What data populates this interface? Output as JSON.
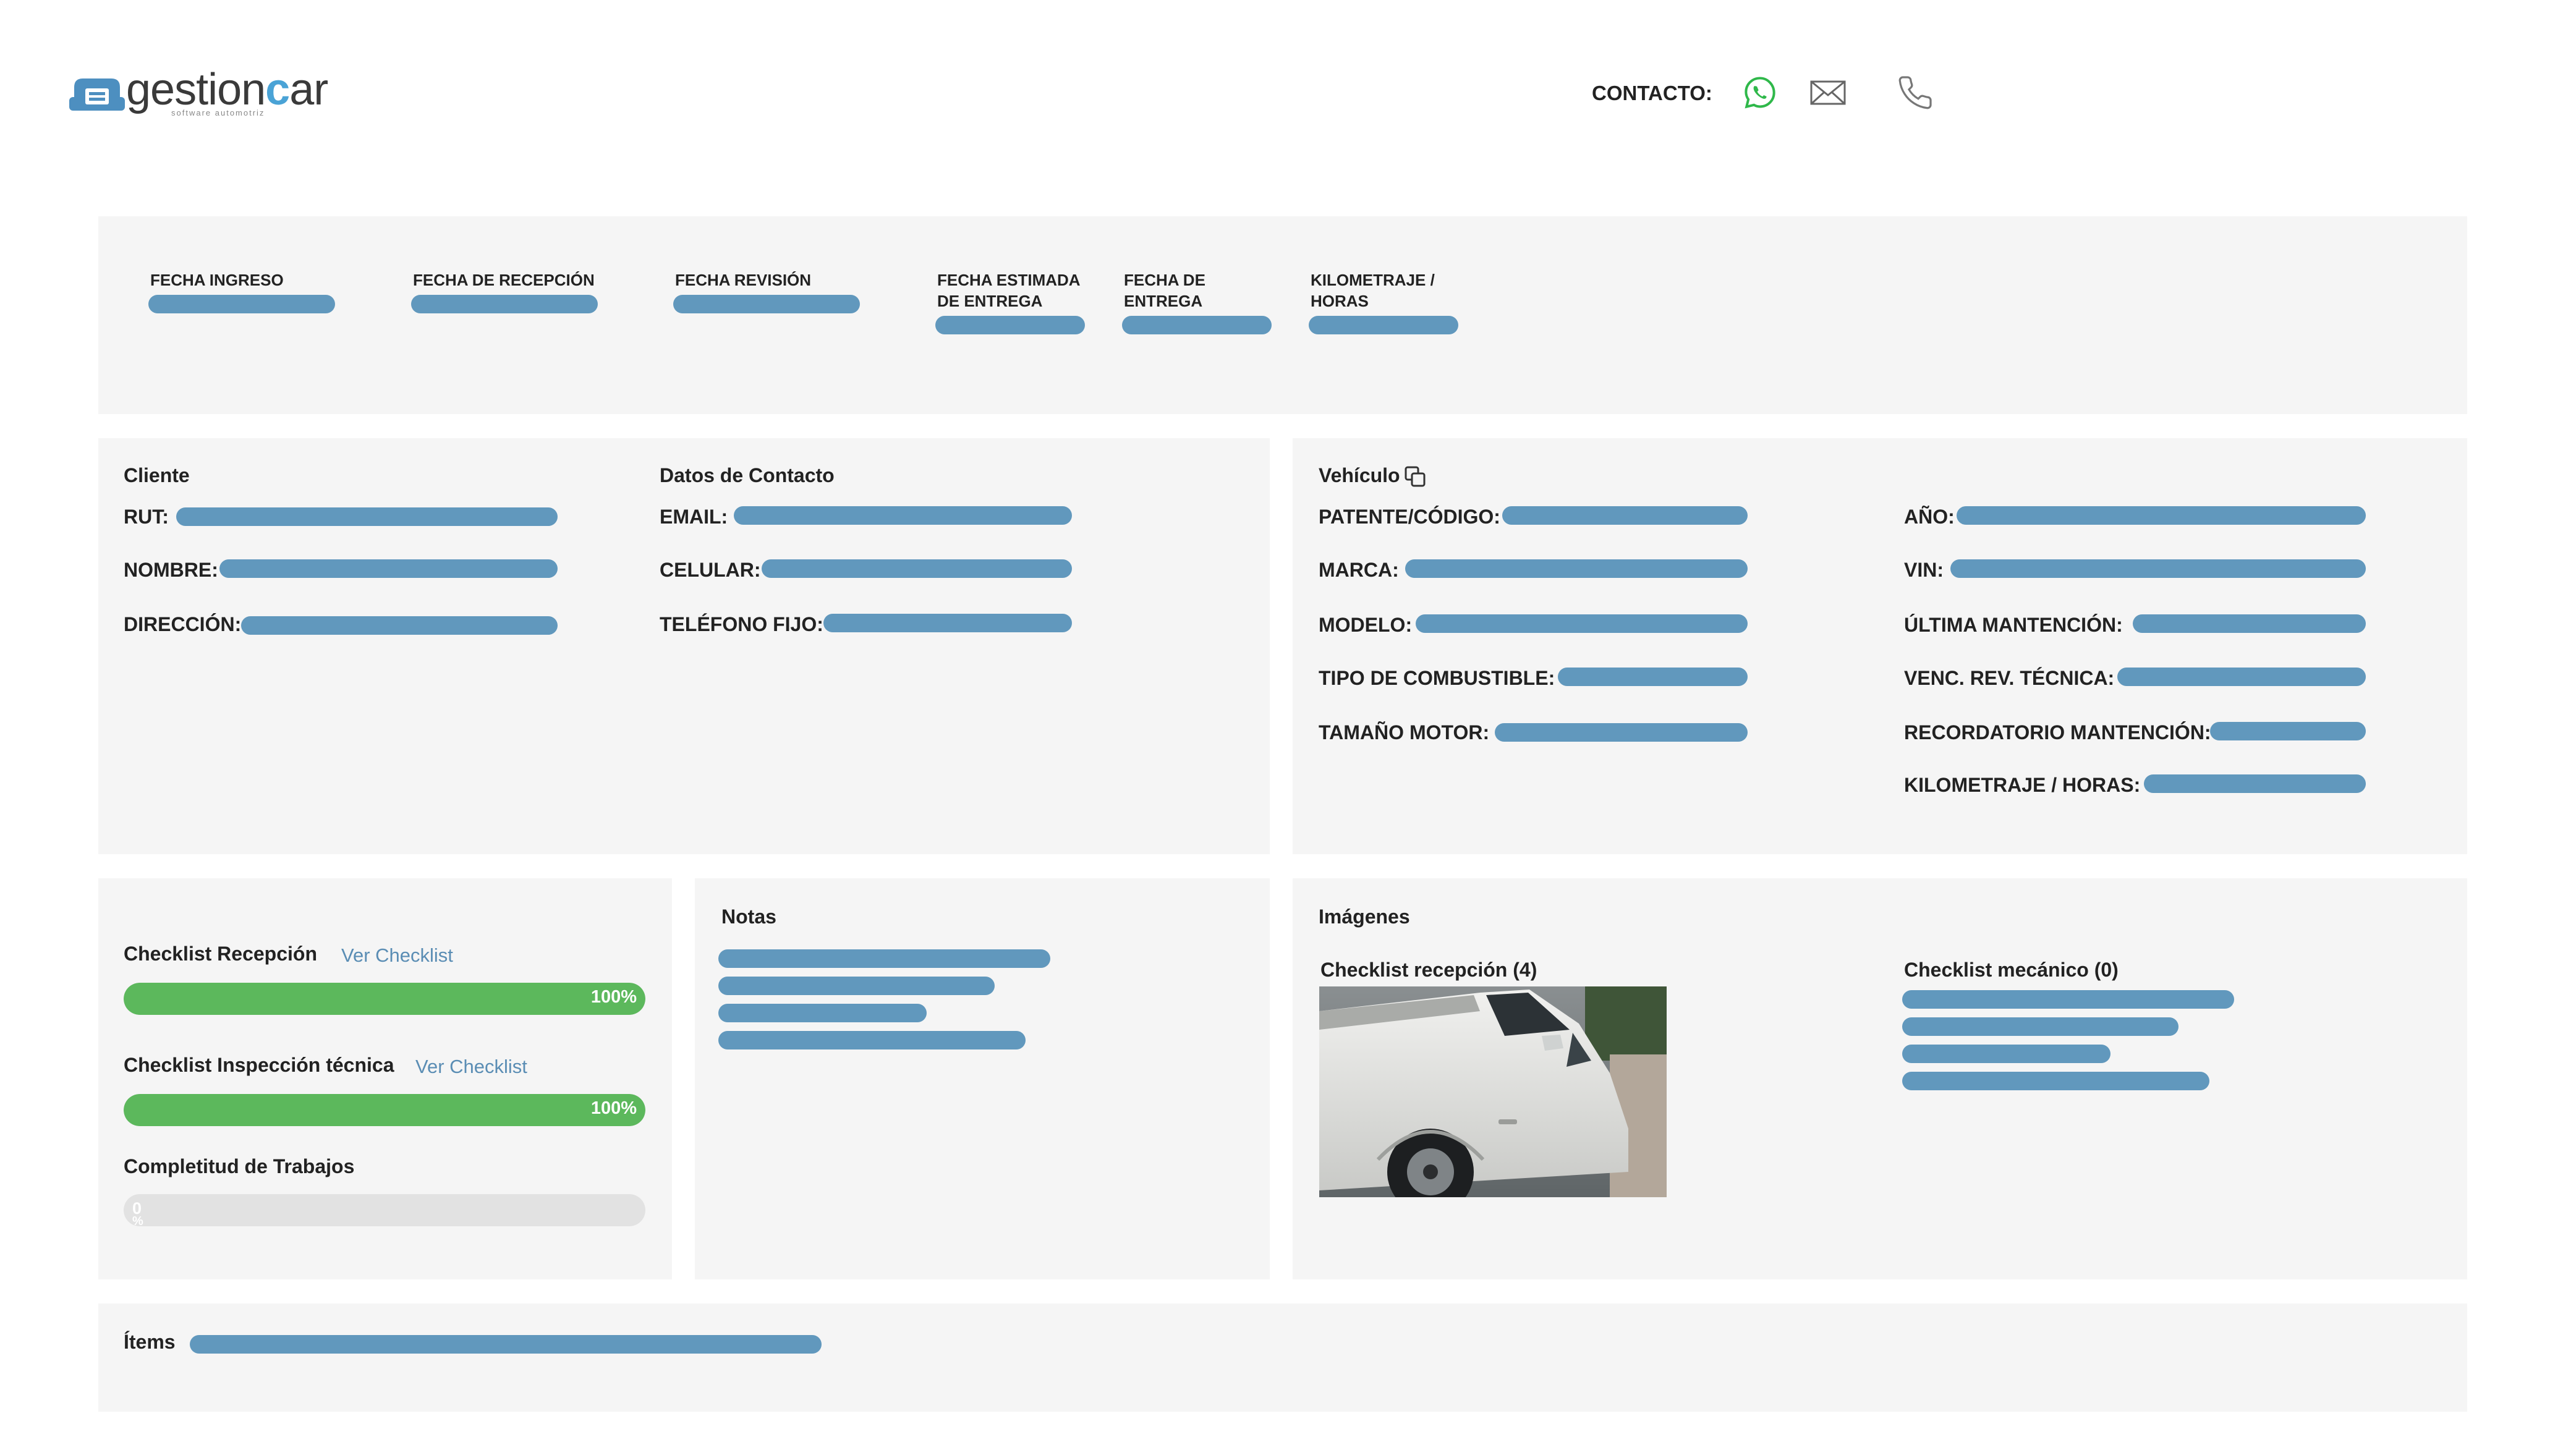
{
  "brand": {
    "name_part1": "gestion",
    "name_c": "c",
    "name_part2": "ar",
    "tagline": "software automotriz"
  },
  "header": {
    "contact_label": "CONTACTO:",
    "icons": [
      "whatsapp-icon",
      "mail-icon",
      "phone-icon"
    ]
  },
  "dates": {
    "fecha_ingreso": "FECHA INGRESO",
    "fecha_recepcion": "FECHA DE RECEPCIÓN",
    "fecha_revision": "FECHA REVISIÓN",
    "fecha_estimada_l1": "FECHA ESTIMADA",
    "fecha_estimada_l2": "DE ENTREGA",
    "fecha_entrega_l1": "FECHA DE",
    "fecha_entrega_l2": "ENTREGA",
    "kilometraje_l1": "KILOMETRAJE /",
    "kilometraje_l2": "HORAS"
  },
  "cliente": {
    "title": "Cliente",
    "rut": "RUT:",
    "nombre": "NOMBRE:",
    "direccion": "DIRECCIÓN:"
  },
  "contacto": {
    "title": "Datos de Contacto",
    "email": "EMAIL:",
    "celular": "CELULAR:",
    "telefono_fijo": "TELÉFONO FIJO:"
  },
  "vehiculo": {
    "title": "Vehículo",
    "patente": "PATENTE/CÓDIGO:",
    "marca": "MARCA:",
    "modelo": "MODELO:",
    "tipo_combustible": "TIPO DE COMBUSTIBLE:",
    "tamano_motor": "TAMAÑO MOTOR:",
    "ano": "AÑO:",
    "vin": "VIN:",
    "ultima_mantencion": "ÚLTIMA MANTENCIÓN:",
    "venc_rev_tecnica": "VENC. REV. TÉCNICA:",
    "recordatorio_mantencion": "RECORDATORIO MANTENCIÓN:",
    "kilometraje_horas": "KILOMETRAJE / HORAS:"
  },
  "checklists": {
    "recepcion_title": "Checklist Recepción",
    "recepcion_link": "Ver Checklist",
    "recepcion_progress": "100%",
    "recepcion_fraction": 1.0,
    "inspeccion_title": "Checklist Inspección técnica",
    "inspeccion_link": "Ver Checklist",
    "inspeccion_progress": "100%",
    "inspeccion_fraction": 1.0,
    "completitud_title": "Completitud de Trabajos",
    "completitud_value": "0",
    "completitud_unit": "%",
    "completitud_fraction": 0
  },
  "notas": {
    "title": "Notas"
  },
  "imagenes": {
    "title": "Imágenes",
    "recepcion_label": "Checklist recepción (4)",
    "mecanico_label": "Checklist mecánico (0)"
  },
  "items": {
    "title": "Ítems"
  },
  "colors": {
    "redacted_bar": "#6198bd",
    "progress_green": "#5cb85c",
    "panel_bg": "#f5f5f5",
    "brand_blue": "#4aa3d6"
  }
}
